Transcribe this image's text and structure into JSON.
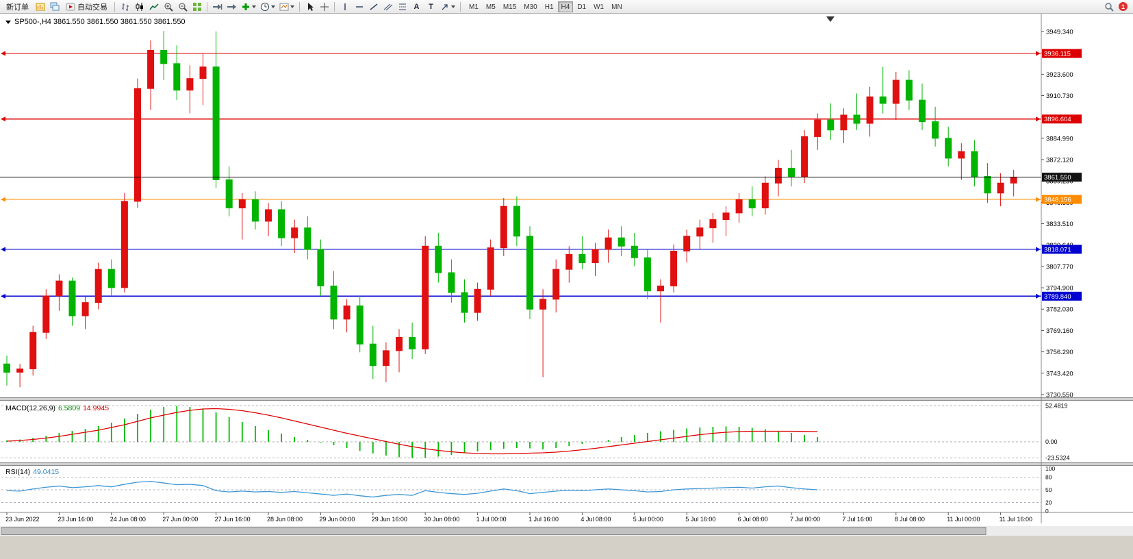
{
  "toolbar": {
    "new_order_label": "新订单",
    "auto_trading_label": "自动交易",
    "text_tool_label": "A",
    "label_tool_label": "T",
    "timeframes": [
      "M1",
      "M5",
      "M15",
      "M30",
      "H1",
      "H4",
      "D1",
      "W1",
      "MN"
    ],
    "active_timeframe": "H4",
    "notification_count": "1"
  },
  "chart": {
    "symbol_line": "SP500-,H4 3861.550 3861.550 3861.550 3861.550"
  },
  "chart_data": {
    "type": "candlestick",
    "symbol": "SP500-",
    "timeframe": "H4",
    "colors": {
      "bull": "#e01010",
      "bear": "#00b400",
      "current_price_line": "#000000"
    },
    "current_price": 3861.55,
    "hlines": [
      {
        "price": 3936.115,
        "color": "#dd0000"
      },
      {
        "price": 3896.604,
        "color": "#dd0000"
      },
      {
        "price": 3848.156,
        "color": "#ff8c00"
      },
      {
        "price": 3818.071,
        "color": "#0000d0"
      },
      {
        "price": 3789.84,
        "color": "#0000d0"
      }
    ],
    "y_ticks": [
      3949.34,
      3936.47,
      3923.6,
      3910.73,
      3897.86,
      3884.99,
      3872.12,
      3859.25,
      3846.38,
      3833.51,
      3820.64,
      3807.77,
      3794.9,
      3782.03,
      3769.16,
      3756.29,
      3743.42,
      3730.55
    ],
    "x_labels": [
      {
        "text": "23 Jun 2022",
        "bar": 0
      },
      {
        "text": "23 Jun 16:00",
        "bar": 4
      },
      {
        "text": "24 Jun 08:00",
        "bar": 8
      },
      {
        "text": "27 Jun 00:00",
        "bar": 12
      },
      {
        "text": "27 Jun 16:00",
        "bar": 16
      },
      {
        "text": "28 Jun 08:00",
        "bar": 20
      },
      {
        "text": "29 Jun 00:00",
        "bar": 24
      },
      {
        "text": "29 Jun 16:00",
        "bar": 28
      },
      {
        "text": "30 Jun 08:00",
        "bar": 32
      },
      {
        "text": "1 Jul 00:00",
        "bar": 36
      },
      {
        "text": "1 Jul 16:00",
        "bar": 40
      },
      {
        "text": "4 Jul 08:00",
        "bar": 44
      },
      {
        "text": "5 Jul 00:00",
        "bar": 48
      },
      {
        "text": "5 Jul 16:00",
        "bar": 52
      },
      {
        "text": "6 Jul 08:00",
        "bar": 56
      },
      {
        "text": "7 Jul 00:00",
        "bar": 60
      },
      {
        "text": "7 Jul 16:00",
        "bar": 64
      },
      {
        "text": "8 Jul 08:00",
        "bar": 68
      },
      {
        "text": "11 Jul 00:00",
        "bar": 72
      },
      {
        "text": "11 Jul 16:00",
        "bar": 76
      }
    ],
    "candles": [
      [
        3749,
        3754,
        3736,
        3744
      ],
      [
        3744,
        3749,
        3735,
        3746
      ],
      [
        3746,
        3772,
        3742,
        3768
      ],
      [
        3768,
        3794,
        3764,
        3790
      ],
      [
        3790,
        3803,
        3781,
        3799
      ],
      [
        3799,
        3801,
        3772,
        3778
      ],
      [
        3778,
        3790,
        3770,
        3786
      ],
      [
        3786,
        3810,
        3782,
        3806
      ],
      [
        3806,
        3812,
        3790,
        3795
      ],
      [
        3795,
        3852,
        3792,
        3847
      ],
      [
        3847,
        3921,
        3843,
        3915
      ],
      [
        3915,
        3944,
        3902,
        3938
      ],
      [
        3938,
        3949.7,
        3920,
        3930
      ],
      [
        3930,
        3941,
        3908,
        3914
      ],
      [
        3914,
        3929,
        3900,
        3921
      ],
      [
        3921,
        3936,
        3905,
        3928
      ],
      [
        3928,
        3949.5,
        3855,
        3860
      ],
      [
        3860,
        3868,
        3838,
        3843
      ],
      [
        3843,
        3852,
        3824,
        3848
      ],
      [
        3848,
        3853,
        3830,
        3835
      ],
      [
        3835,
        3846,
        3826,
        3842
      ],
      [
        3842,
        3847,
        3820,
        3825
      ],
      [
        3825,
        3836,
        3816,
        3831
      ],
      [
        3831,
        3838,
        3812,
        3818
      ],
      [
        3818,
        3824,
        3790,
        3796
      ],
      [
        3796,
        3805,
        3770,
        3776
      ],
      [
        3776,
        3788,
        3768,
        3784
      ],
      [
        3784,
        3790,
        3756,
        3761
      ],
      [
        3761,
        3772,
        3740,
        3748
      ],
      [
        3748,
        3762,
        3738,
        3757
      ],
      [
        3757,
        3770,
        3744,
        3765
      ],
      [
        3765,
        3774,
        3752,
        3758
      ],
      [
        3758,
        3826,
        3755,
        3820
      ],
      [
        3820,
        3828,
        3798,
        3804
      ],
      [
        3804,
        3812,
        3786,
        3792
      ],
      [
        3792,
        3800,
        3774,
        3780
      ],
      [
        3780,
        3798,
        3775,
        3794
      ],
      [
        3794,
        3824,
        3790,
        3819
      ],
      [
        3819,
        3849,
        3814,
        3844
      ],
      [
        3844,
        3850,
        3820,
        3826
      ],
      [
        3826,
        3832,
        3776,
        3782
      ],
      [
        3782,
        3794,
        3741,
        3788
      ],
      [
        3788,
        3812,
        3780,
        3806
      ],
      [
        3806,
        3820,
        3798,
        3815
      ],
      [
        3815,
        3826,
        3806,
        3810
      ],
      [
        3810,
        3822,
        3802,
        3818
      ],
      [
        3818,
        3830,
        3810,
        3825
      ],
      [
        3825,
        3832,
        3814,
        3820
      ],
      [
        3820,
        3828,
        3808,
        3813
      ],
      [
        3813,
        3818,
        3788,
        3793
      ],
      [
        3793,
        3800,
        3774,
        3796
      ],
      [
        3796,
        3821,
        3792,
        3817
      ],
      [
        3817,
        3830,
        3810,
        3826
      ],
      [
        3826,
        3836,
        3818,
        3831
      ],
      [
        3831,
        3840,
        3822,
        3836
      ],
      [
        3836,
        3844,
        3826,
        3840
      ],
      [
        3840,
        3852,
        3834,
        3848
      ],
      [
        3848,
        3856,
        3838,
        3843
      ],
      [
        3843,
        3862,
        3839,
        3858
      ],
      [
        3858,
        3872,
        3850,
        3867
      ],
      [
        3867,
        3878,
        3856,
        3862
      ],
      [
        3862,
        3890,
        3858,
        3886
      ],
      [
        3886,
        3900,
        3878,
        3896
      ],
      [
        3896,
        3906,
        3884,
        3890
      ],
      [
        3890,
        3903,
        3882,
        3899
      ],
      [
        3899,
        3912,
        3890,
        3894
      ],
      [
        3894,
        3916,
        3886,
        3910
      ],
      [
        3910,
        3928,
        3900,
        3906
      ],
      [
        3906,
        3925,
        3896,
        3920
      ],
      [
        3920,
        3926,
        3902,
        3908
      ],
      [
        3908,
        3918,
        3890,
        3895
      ],
      [
        3895,
        3904,
        3880,
        3885
      ],
      [
        3885,
        3892,
        3868,
        3873
      ],
      [
        3873,
        3882,
        3860,
        3877
      ],
      [
        3877,
        3884,
        3856,
        3862
      ],
      [
        3862,
        3870,
        3846,
        3852
      ],
      [
        3852,
        3864,
        3844,
        3858
      ],
      [
        3858,
        3866,
        3850,
        3861.55
      ]
    ],
    "macd": {
      "name": "MACD(12,26,9)",
      "value_main": "6.5809",
      "value_signal": "14.9945",
      "levels": [
        52.4819,
        0,
        -23.5324
      ],
      "level_labels": [
        "52.4819",
        "0.00",
        "-23.5324"
      ],
      "histogram": [
        2,
        3.5,
        6,
        9,
        13,
        16,
        19,
        23,
        28,
        34,
        41,
        47,
        51,
        52.5,
        51,
        48,
        43,
        36,
        29,
        23,
        17,
        12,
        7,
        3,
        -1,
        -5,
        -9,
        -13,
        -17,
        -20,
        -22.5,
        -23.5,
        -23,
        -21.5,
        -19,
        -16.5,
        -14,
        -12,
        -10,
        -9,
        -9.5,
        -11,
        -9,
        -6,
        -3,
        0,
        3,
        7,
        10,
        13,
        15.5,
        17.5,
        19.5,
        21,
        22,
        22.5,
        22,
        20.5,
        18.5,
        16,
        13,
        10,
        7
      ],
      "signal": [
        1,
        2,
        3.5,
        5.5,
        8,
        11,
        14,
        17,
        21,
        25,
        30,
        35,
        39,
        43,
        46,
        48,
        48.5,
        47.5,
        45.5,
        42.5,
        39,
        35,
        30.5,
        26,
        21.5,
        17,
        12.5,
        8.5,
        4.5,
        0.5,
        -3.5,
        -7,
        -10,
        -12.5,
        -14.5,
        -16,
        -17,
        -17.5,
        -17.5,
        -17,
        -16.5,
        -16,
        -15,
        -13.5,
        -11.5,
        -9.5,
        -7,
        -4.5,
        -2,
        0.5,
        3,
        5.5,
        8,
        10.5,
        12.5,
        14,
        15,
        15.5,
        15.5,
        15.5,
        15.5,
        15.2,
        15
      ]
    },
    "rsi": {
      "name": "RSI(14)",
      "value": "49.0415",
      "levels": [
        80,
        50,
        20
      ],
      "axis": [
        100,
        80,
        50,
        20,
        0
      ],
      "series": [
        48,
        47,
        52,
        56,
        59,
        55,
        57,
        60,
        57,
        63,
        68,
        70,
        66,
        62,
        63,
        60,
        48,
        45,
        47,
        45,
        46,
        44,
        46,
        43,
        40,
        37,
        40,
        36,
        33,
        37,
        39,
        37,
        48,
        44,
        41,
        39,
        42,
        47,
        52,
        48,
        41,
        44,
        47,
        49,
        48,
        50,
        52,
        50,
        48,
        45,
        46,
        50,
        52,
        53,
        54,
        55,
        56,
        54,
        57,
        59,
        55,
        52,
        50
      ]
    }
  }
}
